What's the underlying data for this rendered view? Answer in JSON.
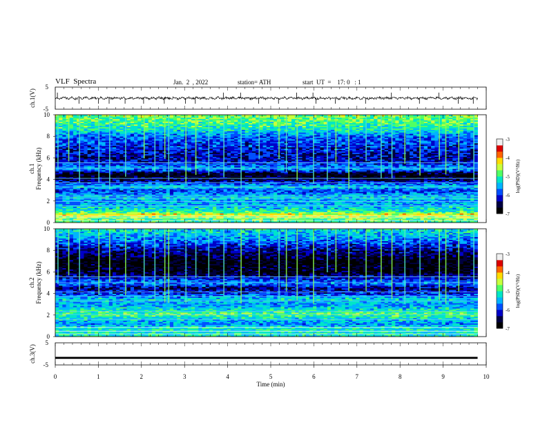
{
  "header": {
    "title": "VLF  Spectra",
    "date": "Jan.  2  , 2022",
    "station": "station= ATH",
    "start": "start  UT  =    17: 0   : 1"
  },
  "colors": {
    "spectrogram_palette": [
      "#000000",
      "#000040",
      "#0000c8",
      "#0050ff",
      "#00b4ff",
      "#00e6c8",
      "#50ff64",
      "#c8ff3c",
      "#ffdc00",
      "#ff6400",
      "#dc0000",
      "#f0f0f0"
    ],
    "trace": "#000000"
  },
  "chart_data": [
    {
      "type": "line",
      "name": "ch1",
      "ylabel": "ch.1(V)",
      "yticks": [
        "5",
        "-5"
      ],
      "ylim": [
        -5,
        5
      ],
      "xlim": [
        0,
        10
      ],
      "x_end_min": 9.8,
      "trace_mean": 0.0,
      "trace_amplitude_typical": 0.6,
      "spikes": [
        0.05,
        0.55,
        1.0,
        1.25,
        1.62,
        2.05,
        2.53,
        3.02,
        3.25,
        3.9,
        4.3,
        4.72,
        5.18,
        5.6,
        5.98,
        6.05,
        6.5,
        7.2,
        7.8,
        8.45,
        8.9,
        9.35,
        9.7
      ]
    },
    {
      "type": "heatmap",
      "name": "ch1-spectrogram",
      "xlim": [
        0,
        10
      ],
      "ylim": [
        0,
        10
      ],
      "ylabel": "ch.1\nFrequency  (kHz)",
      "yticks": [
        "0",
        "2",
        "4",
        "6",
        "8",
        "10"
      ],
      "colorbar": {
        "label": "log(PSD)(V²/Hz)",
        "range": [
          -7,
          -3
        ],
        "ticks": [
          "-3",
          "-4",
          "-5",
          "-6",
          "-7"
        ]
      },
      "profile_kHz": [
        [
          0.2,
          -5.0
        ],
        [
          0.8,
          -4.3
        ],
        [
          1.0,
          -5.0
        ],
        [
          1.5,
          -5.4
        ],
        [
          2.0,
          -5.6
        ],
        [
          2.3,
          -5.3
        ],
        [
          3.0,
          -6.0
        ],
        [
          3.3,
          -5.3
        ],
        [
          4.0,
          -6.5
        ],
        [
          4.5,
          -6.8
        ],
        [
          5.0,
          -5.5
        ],
        [
          5.5,
          -6.0
        ],
        [
          6.0,
          -6.3
        ],
        [
          7.0,
          -6.0
        ],
        [
          8.0,
          -5.8
        ],
        [
          8.5,
          -5.3
        ],
        [
          9.0,
          -5.0
        ],
        [
          10.0,
          -4.7
        ]
      ],
      "lines_kHz": [
        0.2,
        0.45,
        0.6,
        1.55,
        1.95,
        2.25,
        2.45,
        3.3,
        3.7,
        4.1,
        5.05,
        5.55
      ],
      "sferic_times_min": [
        0.05,
        0.3,
        0.55,
        1.0,
        1.25,
        1.62,
        2.05,
        2.3,
        2.53,
        2.62,
        3.02,
        3.25,
        3.55,
        3.9,
        4.3,
        4.72,
        5.18,
        5.35,
        5.6,
        5.98,
        6.3,
        6.5,
        6.8,
        7.2,
        7.55,
        7.8,
        8.1,
        8.45,
        8.9,
        9.05,
        9.35,
        9.7
      ],
      "x_end_min": 9.8
    },
    {
      "type": "heatmap",
      "name": "ch2-spectrogram",
      "xlim": [
        0,
        10
      ],
      "ylim": [
        0,
        10
      ],
      "ylabel": "ch.2\nFrequency  (kHz)",
      "yticks": [
        "0",
        "2",
        "4",
        "6",
        "8",
        "10"
      ],
      "colorbar": {
        "label": "log(PSD)(V²/Hz)",
        "range": [
          -7,
          -3
        ],
        "ticks": [
          "-3",
          "-4",
          "-5",
          "-6",
          "-7"
        ]
      },
      "profile_kHz": [
        [
          0.2,
          -5.2
        ],
        [
          0.8,
          -5.2
        ],
        [
          1.2,
          -5.6
        ],
        [
          1.8,
          -5.2
        ],
        [
          2.1,
          -4.8
        ],
        [
          2.5,
          -5.2
        ],
        [
          3.0,
          -5.6
        ],
        [
          3.5,
          -5.3
        ],
        [
          4.0,
          -6.0
        ],
        [
          4.5,
          -6.4
        ],
        [
          5.0,
          -5.6
        ],
        [
          5.5,
          -6.2
        ],
        [
          6.0,
          -6.7
        ],
        [
          7.0,
          -6.8
        ],
        [
          8.0,
          -6.3
        ],
        [
          9.0,
          -5.7
        ],
        [
          10.0,
          -5.2
        ]
      ],
      "lines_kHz": [
        0.25,
        0.5,
        0.85,
        1.6,
        2.05,
        2.35,
        3.3,
        3.75,
        4.15,
        5.0,
        5.55
      ],
      "sferic_times_min": [
        0.05,
        0.3,
        0.55,
        1.0,
        1.25,
        1.62,
        2.05,
        2.3,
        2.53,
        2.62,
        3.02,
        3.25,
        3.55,
        3.9,
        4.3,
        4.72,
        5.18,
        5.35,
        5.6,
        5.98,
        6.3,
        6.5,
        6.8,
        7.2,
        7.55,
        7.8,
        8.1,
        8.45,
        8.9,
        9.05,
        9.35,
        9.7
      ],
      "x_end_min": 9.8
    },
    {
      "type": "line",
      "name": "ch3",
      "ylabel": "ch.3(V)",
      "yticks": [
        "5",
        "-5"
      ],
      "ylim": [
        -5,
        5
      ],
      "xlim": [
        0,
        10
      ],
      "x_end_min": 9.8,
      "trace_mean": -1.8,
      "trace_thickness_V": 0.9,
      "xlabel": "Time  (min)",
      "xticks": [
        "0",
        "1",
        "2",
        "3",
        "4",
        "5",
        "6",
        "7",
        "8",
        "9",
        "10"
      ]
    }
  ]
}
